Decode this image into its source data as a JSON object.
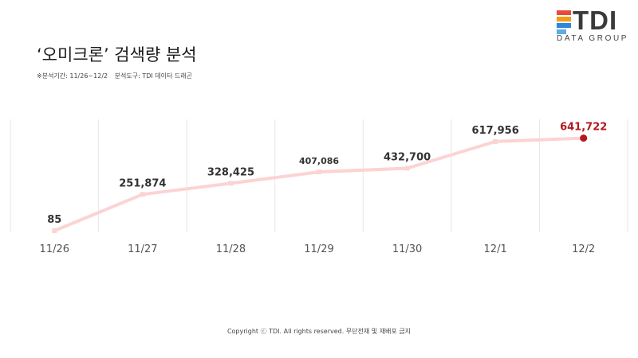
{
  "logo": {
    "word": "TDI",
    "sub": "DATA GROUP",
    "colors": [
      "#e84b3c",
      "#f39c12",
      "#2e86de",
      "#5dade2"
    ]
  },
  "title": "‘오미크론’ 검색량 분석",
  "subtitle": {
    "period": "※분석기간: 11/26~12/2",
    "tool": "분석도구: TDI 데이터 드래곤"
  },
  "chart_data": {
    "type": "line",
    "categories": [
      "11/26",
      "11/27",
      "11/28",
      "11/29",
      "11/30",
      "12/1",
      "12/2"
    ],
    "values": [
      85,
      251874,
      328425,
      407086,
      432700,
      617956,
      641722
    ],
    "value_labels": [
      "85",
      "251,874",
      "328,425",
      "407,086",
      "432,700",
      "617,956",
      "641,722"
    ],
    "ylim": [
      0,
      700000
    ],
    "grid": "vertical",
    "line_color": "#fcd3d3",
    "highlight_color": "#b2191e",
    "highlight_index": 6
  },
  "footer": "Copyright ⓒ TDI. All rights reserved. 무단전재 및 재배포 금지"
}
